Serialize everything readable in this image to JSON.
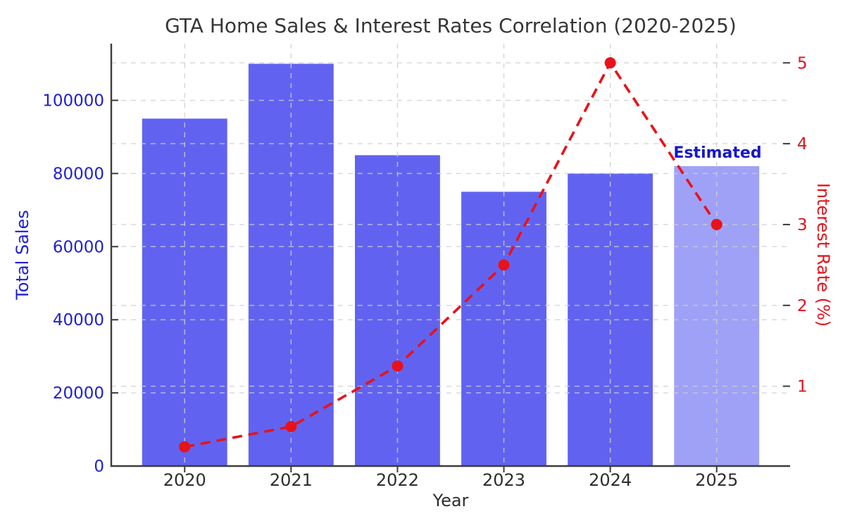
{
  "chart_data": {
    "type": "combo",
    "title": "GTA Home Sales & Interest Rates Correlation (2020-2025)",
    "xlabel": "Year",
    "categories": [
      "2020",
      "2021",
      "2022",
      "2023",
      "2024",
      "2025"
    ],
    "series": [
      {
        "name": "Total Sales",
        "type": "bar",
        "axis": "left",
        "values": [
          95000,
          110000,
          85000,
          75000,
          80000,
          82000
        ]
      },
      {
        "name": "Interest Rate (%)",
        "type": "line",
        "axis": "right",
        "style": "dashed",
        "marker": "circle",
        "values": [
          0.25,
          0.5,
          1.25,
          2.5,
          5.0,
          3.0
        ]
      }
    ],
    "left_axis": {
      "label": "Total Sales",
      "ticks": [
        0,
        20000,
        40000,
        60000,
        80000,
        100000
      ],
      "range": [
        0,
        115500
      ],
      "color": "#1f1fd0"
    },
    "right_axis": {
      "label": "Interest Rate (%)",
      "ticks": [
        1,
        2,
        3,
        4,
        5
      ],
      "range": [
        0.0125,
        5.2375
      ],
      "color": "#e3121b"
    },
    "x_range": [
      2019.31,
      2025.69
    ],
    "annotations": [
      {
        "text": "Estimated",
        "category": "2025",
        "color": "#1717c9"
      }
    ],
    "estimated_bar_index": 5,
    "grid": true,
    "legend": "none"
  },
  "colors": {
    "bar": "#6163f0",
    "bar_estimated": "#9fa1f6",
    "line": "#e8121a",
    "grid": "#cfcfcf",
    "spine": "#3c3c3c",
    "xtick_text": "#2e2e2e",
    "title_text": "#363636",
    "background": "#ffffff"
  }
}
